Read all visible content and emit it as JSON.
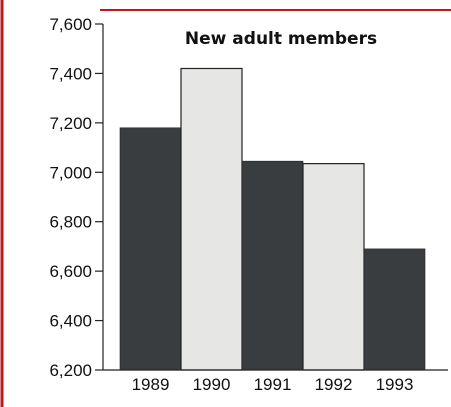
{
  "chart_data": {
    "type": "bar",
    "title": "New adult members",
    "categories": [
      "1989",
      "1990",
      "1991",
      "1992",
      "1993"
    ],
    "values": [
      7180,
      7420,
      7045,
      7035,
      6690
    ],
    "ylim": [
      6200,
      7600
    ],
    "yticks": [
      6200,
      6400,
      6600,
      6800,
      7000,
      7200,
      7400,
      7600
    ],
    "ytick_labels": [
      "6,200",
      "6,400",
      "6,600",
      "6,800",
      "7,000",
      "7,200",
      "7,400",
      "7,600"
    ],
    "grid": false,
    "bar_colors": [
      "#3a3d3f",
      "#e6e6e4",
      "#3a3d3f",
      "#e6e6e4",
      "#3a3d3f"
    ],
    "frame_color": "#c0161d"
  }
}
